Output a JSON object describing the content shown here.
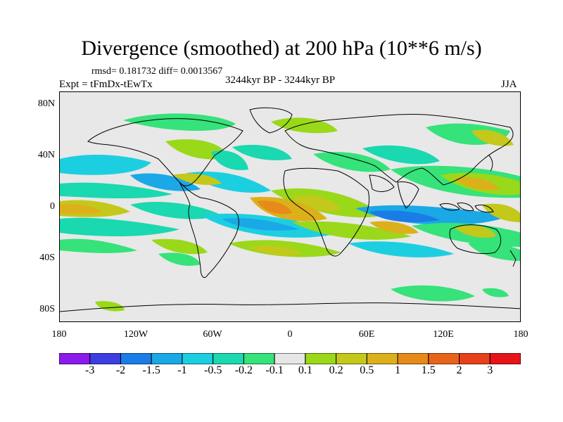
{
  "title": "Divergence (smoothed) at 200 hPa (10**6 m/s)",
  "stats": "rmsd= 0.181732 diff= 0.0013567",
  "experiment": "Expt = tFmDx-tEwTx",
  "period": "3244kyr BP - 3244kyr BP",
  "season": "JJA",
  "map": {
    "lat_labels": [
      "80N",
      "40N",
      "0",
      "40S",
      "80S"
    ],
    "lon_labels": [
      "180",
      "120W",
      "60W",
      "0",
      "60E",
      "120E",
      "180"
    ],
    "background_color": "#e8e8e8"
  },
  "colorbar": {
    "colors": [
      "#8c1aea",
      "#3c3ee0",
      "#1a7ce6",
      "#1aa8e6",
      "#1ccfe0",
      "#1ad8b0",
      "#36e27a",
      "#e6e6e6",
      "#9ad81a",
      "#c4c81a",
      "#dcb01a",
      "#e68a1a",
      "#e8641a",
      "#e8401a",
      "#e6141a"
    ],
    "labels": [
      "-3",
      "-2",
      "-1.5",
      "-1",
      "-0.5",
      "-0.2",
      "-0.1",
      "0.1",
      "0.2",
      "0.5",
      "1",
      "1.5",
      "2",
      "3"
    ]
  }
}
